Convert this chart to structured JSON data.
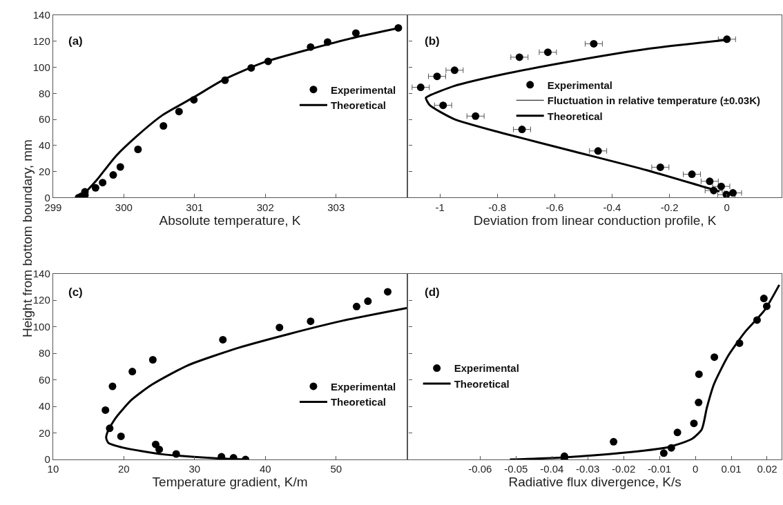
{
  "chart_data": [
    {
      "type": "scatter",
      "ylabel": "Height from bottom boundary, mm",
      "xlabel": "Absolute temperature, K",
      "annotations": [
        "(a)"
      ],
      "xlim": [
        299,
        304
      ],
      "xticks": [
        299,
        300,
        301,
        302,
        303
      ],
      "ylim": [
        0,
        140
      ],
      "yticks": [
        0,
        20,
        40,
        60,
        80,
        100,
        120,
        140
      ],
      "legend": "right",
      "series": [
        {
          "name": "Experimental",
          "marker": "circle",
          "color": "#000000",
          "x": [
            299.36,
            299.4,
            299.45,
            299.45,
            299.6,
            299.7,
            299.85,
            299.95,
            300.2,
            300.56,
            300.78,
            300.99,
            301.43,
            301.8,
            302.04,
            302.64,
            302.88,
            303.28,
            303.88
          ],
          "values": [
            0,
            1,
            4.4,
            2,
            7.5,
            11.5,
            17.4,
            23.5,
            37,
            55,
            66,
            75,
            90,
            99.5,
            104.5,
            115.5,
            119.3,
            126.2,
            130.2
          ]
        },
        {
          "name": "Theoretical",
          "type": "line",
          "color": "#000000",
          "x": [
            299.39,
            299.61,
            299.89,
            300.18,
            300.54,
            300.99,
            301.43,
            301.99,
            302.64,
            303.28,
            303.88
          ],
          "values": [
            0,
            13,
            32,
            47,
            63,
            77,
            91,
            104,
            114,
            123,
            130
          ]
        }
      ]
    },
    {
      "type": "scatter",
      "xlabel": "Deviation from linear conduction profile, K",
      "annotations": [
        "(b)",
        "Fluctuation in relative temperature (±0.03K)"
      ],
      "xlim": [
        -1.11,
        0.19
      ],
      "xticks": [
        -1,
        -0.8,
        -0.6,
        -0.4,
        -0.2,
        0
      ],
      "ylim": [
        0,
        140
      ],
      "yticks": [
        0,
        20,
        40,
        60,
        80,
        100,
        120,
        140
      ],
      "tick_labels": "x",
      "legend": "top",
      "series": [
        {
          "name": "Experimental",
          "marker": "circle",
          "color": "#000000",
          "x": [
            0.0,
            -0.464,
            -0.624,
            -0.723,
            -0.949,
            -1.01,
            -1.067,
            -0.989,
            -0.876,
            -0.714,
            -0.449,
            -0.232,
            -0.122,
            -0.06,
            -0.02,
            -0.046,
            -0.002,
            0.021
          ],
          "values": [
            121.5,
            118,
            111.5,
            107.7,
            97.7,
            93,
            84.6,
            70.8,
            62.5,
            52.3,
            35.8,
            23.3,
            17.9,
            12.5,
            8.6,
            5.4,
            2.3,
            3.6
          ],
          "xerrors": [
            0.03,
            0.03,
            0.03,
            0.03,
            0.03,
            0.03,
            0.03,
            0.03,
            0.03,
            0.03,
            0.03,
            0.03,
            0.03,
            0.03,
            0.03,
            0.03,
            0.03,
            0.03
          ]
        },
        {
          "name": "Theoretical",
          "type": "line",
          "color": "#000000",
          "x": [
            0,
            -0.279,
            -0.531,
            -0.784,
            -0.952,
            -1.036,
            -1.049,
            -1.036,
            -0.952,
            -0.784,
            -0.531,
            -0.279,
            -0.069,
            -0.026
          ],
          "values": [
            121,
            114,
            105,
            94.4,
            85.5,
            78.3,
            76.5,
            71,
            60.4,
            49.6,
            35.3,
            21,
            7.5,
            4.8
          ]
        }
      ]
    },
    {
      "type": "scatter",
      "xlabel": "Temperature gradient, K/m",
      "annotations": [
        "(c)"
      ],
      "xlim": [
        10,
        60
      ],
      "xticks": [
        10,
        20,
        30,
        40,
        50
      ],
      "ylim": [
        0,
        140
      ],
      "yticks": [
        0,
        20,
        40,
        60,
        80,
        100,
        120,
        140
      ],
      "legend": "bottom right",
      "series": [
        {
          "name": "Experimental",
          "marker": "circle",
          "color": "#000000",
          "x": [
            17.4,
            18.4,
            18.0,
            19.6,
            21.2,
            24.1,
            24.5,
            25.0,
            27.4,
            34.0,
            33.8,
            35.5,
            37.2,
            42.0,
            46.4,
            52.9,
            54.5,
            57.3
          ],
          "values": [
            37.2,
            55.1,
            23.5,
            17.5,
            66.2,
            75.1,
            11.4,
            7.6,
            4.2,
            90.2,
            2.1,
            1.3,
            0,
            99.4,
            104.1,
            115.2,
            119.2,
            126.3
          ]
        },
        {
          "name": "Theoretical",
          "type": "line",
          "color": "#000000",
          "x": [
            37.3,
            32.6,
            25.4,
            20,
            17.8,
            17.5,
            17.8,
            18.9,
            21.1,
            24,
            29,
            36.2,
            43.4,
            50.6,
            60
          ],
          "values": [
            0,
            1.1,
            4,
            8.8,
            12.6,
            16.4,
            22.1,
            31.7,
            45,
            56.5,
            70.8,
            84.1,
            94.6,
            104.1,
            114
          ]
        }
      ]
    },
    {
      "type": "scatter",
      "xlabel": "Radiative flux divergence, K/s",
      "annotations": [
        "(d)"
      ],
      "xlim": [
        -0.08,
        0.024
      ],
      "xticks": [
        -0.06,
        -0.05,
        -0.04,
        -0.03,
        -0.02,
        -0.01,
        0,
        0.01,
        0.02
      ],
      "ylim": [
        0,
        140
      ],
      "yticks": [
        0,
        20,
        40,
        60,
        80,
        100,
        120,
        140
      ],
      "tick_labels": "x",
      "legend": "left",
      "series": [
        {
          "name": "Experimental",
          "marker": "circle",
          "color": "#000000",
          "x": [
            -0.0365,
            -0.0365,
            -0.0228,
            -0.0088,
            -0.0067,
            -0.005,
            -0.0004,
            0.0009,
            0.001,
            0.0053,
            0.0123,
            0.0172,
            0.0191,
            0.0199
          ],
          "values": [
            2.5,
            0,
            13.4,
            4.8,
            8.8,
            20.4,
            27.2,
            43,
            64.2,
            77.1,
            87.6,
            105,
            121.3,
            115.4
          ]
        },
        {
          "name": "Theoretical",
          "type": "line",
          "color": "#000000",
          "x": [
            -0.0517,
            -0.0365,
            -0.0211,
            -0.0076,
            -0.0009,
            0.0018,
            0.0032,
            0.0052,
            0.0092,
            0.0139,
            0.0193,
            0.0234
          ],
          "values": [
            0,
            1.6,
            4.8,
            9.3,
            15.6,
            22.8,
            38.9,
            56.8,
            78.3,
            96.2,
            112.4,
            131.5
          ]
        }
      ]
    }
  ]
}
